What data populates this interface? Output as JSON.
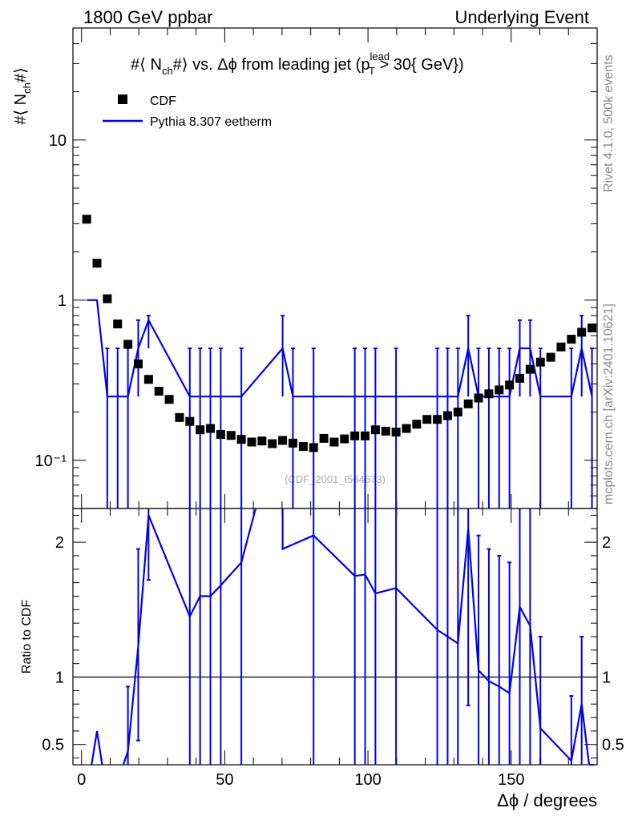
{
  "chart_data": {
    "type": "scatter",
    "header_left": "1800 GeV ppbar",
    "header_right": "Underlying Event",
    "title": "#⟨ N_ch#⟩ vs. Δϕ from leading jet  (p_T^lead > 30{ GeV})",
    "title_parts": {
      "a": "#⟨ N",
      "b": "ch",
      "c": "#⟩ vs. Δϕ from leading jet  (p",
      "d": "lead",
      "e": "T",
      "f": " > 30{ GeV})"
    },
    "ylabel_parts": {
      "a": "#⟨ N",
      "b": "ch",
      "c": "#⟩"
    },
    "xlabel": "Δϕ / degrees",
    "ratio_ylabel": "Ratio to CDF",
    "watermark": "(CDF_2001_I564673)",
    "side_text_top": "Rivet 4.1.0,  500k events",
    "side_text_bottom": "mcplots.cern.ch [arXiv:2401.10621]",
    "legend": [
      {
        "label": "CDF",
        "style": "marker",
        "color": "#000000"
      },
      {
        "label": "Pythia 8.307 eetherm",
        "style": "line",
        "color": "#0000ee"
      }
    ],
    "x_range": [
      -3,
      180
    ],
    "x_ticks": [
      0,
      50,
      100,
      150
    ],
    "x_tick_labels": [
      "0",
      "50",
      "100",
      "150"
    ],
    "main_y_log": true,
    "main_y_range": [
      0.05,
      50
    ],
    "main_y_ticks": [
      0.1,
      1,
      10
    ],
    "main_y_tick_labels": [
      "10⁻¹",
      "1",
      "10"
    ],
    "ratio_y_range": [
      0.35,
      2.25
    ],
    "ratio_y_ticks": [
      0.5,
      1,
      2
    ],
    "ratio_y_tick_labels": [
      "0.5",
      "1",
      "2"
    ],
    "series": [
      {
        "name": "CDF",
        "x": [
          1.8,
          5.4,
          9,
          12.6,
          16.2,
          19.8,
          23.4,
          27,
          30.6,
          34.2,
          37.8,
          41.4,
          45,
          48.6,
          52.2,
          55.8,
          59.4,
          63,
          66.6,
          70.2,
          73.8,
          77.4,
          81,
          84.6,
          88.2,
          91.8,
          95.4,
          99,
          102.6,
          106.2,
          109.8,
          113.4,
          117,
          120.6,
          124.2,
          127.8,
          131.4,
          135,
          138.6,
          142.2,
          145.8,
          149.4,
          153,
          156.6,
          160.2,
          163.8,
          167.4,
          171,
          174.6,
          178.2
        ],
        "values": [
          3.2,
          1.7,
          1.02,
          0.71,
          0.53,
          0.4,
          0.32,
          0.27,
          0.24,
          0.185,
          0.175,
          0.155,
          0.158,
          0.145,
          0.143,
          0.135,
          0.13,
          0.132,
          0.127,
          0.133,
          0.128,
          0.122,
          0.12,
          0.137,
          0.13,
          0.136,
          0.142,
          0.142,
          0.155,
          0.152,
          0.15,
          0.158,
          0.168,
          0.18,
          0.18,
          0.19,
          0.2,
          0.225,
          0.245,
          0.26,
          0.275,
          0.295,
          0.325,
          0.37,
          0.41,
          0.44,
          0.51,
          0.57,
          0.63,
          0.67
        ]
      },
      {
        "name": "Pythia 8.307 eetherm",
        "x": [
          1.8,
          5.4,
          9,
          12.6,
          16.2,
          19.8,
          23.4,
          37.8,
          41.4,
          45,
          48.6,
          55.8,
          70.2,
          73.8,
          81,
          95.4,
          99,
          102.6,
          109.8,
          124.2,
          127.8,
          131.4,
          135,
          138.6,
          142.2,
          145.8,
          149.4,
          153,
          156.6,
          160.2,
          171,
          174.6,
          178.2
        ],
        "values": [
          1.0,
          1.0,
          0.25,
          0.25,
          0.25,
          0.5,
          0.75,
          0.25,
          0.25,
          0.25,
          0.25,
          0.25,
          0.5,
          0.25,
          0.25,
          0.25,
          0.25,
          0.25,
          0.25,
          0.25,
          0.25,
          0.25,
          0.5,
          0.25,
          0.25,
          0.25,
          0.25,
          0.5,
          0.5,
          0.25,
          0.25,
          0.5,
          0.25
        ],
        "err_up": [
          0,
          0,
          0.25,
          0.25,
          0.25,
          0.25,
          0.05,
          0.25,
          0.25,
          0.25,
          0.25,
          0.25,
          0.3,
          0.25,
          0.25,
          0.25,
          0.25,
          0.25,
          0.25,
          0.25,
          0.25,
          0.25,
          0.3,
          0.25,
          0.25,
          0.25,
          0.25,
          0.25,
          0.25,
          0.25,
          0.25,
          0.3,
          0.25
        ],
        "err_down": [
          0,
          0,
          0.25,
          0.25,
          0.25,
          0.25,
          0.25,
          0.25,
          0.25,
          0.25,
          0.25,
          0.25,
          0.25,
          0.25,
          0.25,
          0.25,
          0.25,
          0.25,
          0.25,
          0.25,
          0.25,
          0.25,
          0.25,
          0.25,
          0.25,
          0.25,
          0.25,
          0.25,
          0.25,
          0.25,
          0.25,
          0.25,
          0.25
        ]
      }
    ],
    "ratio_series": [
      {
        "name": "Pythia 8.307 eetherm / CDF",
        "segments": [
          [
            [
              3.5,
              0.3
            ],
            [
              5.4,
              0.6
            ],
            [
              7.2,
              0.3
            ]
          ],
          [
            [
              14.6,
              0.3
            ],
            [
              16.2,
              0.45
            ],
            [
              19.8,
              1.23
            ],
            [
              23.4,
              2.2
            ],
            [
              37.8,
              1.45
            ],
            [
              41.4,
              1.6
            ],
            [
              45,
              1.6
            ],
            [
              48.6,
              1.68
            ],
            [
              55.8,
              1.85
            ],
            [
              60.8,
              2.3
            ]
          ],
          [
            [
              70.2,
              2.3
            ],
            [
              70.2,
              1.95
            ],
            [
              81,
              2.05
            ],
            [
              95.4,
              1.75
            ],
            [
              99,
              1.76
            ],
            [
              102.6,
              1.62
            ],
            [
              109.8,
              1.66
            ],
            [
              124.2,
              1.35
            ],
            [
              127.8,
              1.3
            ],
            [
              131.4,
              1.25
            ],
            [
              135,
              2.1
            ],
            [
              138.6,
              1.05
            ],
            [
              142.2,
              0.97
            ],
            [
              145.8,
              0.93
            ],
            [
              149.4,
              0.88
            ],
            [
              153,
              1.52
            ],
            [
              156.6,
              1.38
            ],
            [
              160.2,
              0.62
            ],
            [
              171,
              0.38
            ],
            [
              174.6,
              0.8
            ],
            [
              177.2,
              0.3
            ]
          ]
        ],
        "err_points": [
          {
            "x": 16.2,
            "lo": 0.3,
            "hi": 0.93
          },
          {
            "x": 19.8,
            "lo": 0.53,
            "hi": 1.95
          },
          {
            "x": 23.4,
            "lo": 1.72,
            "hi": 2.3
          },
          {
            "x": 37.8,
            "lo": 0.3,
            "hi": 2.3
          },
          {
            "x": 41.4,
            "lo": 0.3,
            "hi": 2.3
          },
          {
            "x": 45,
            "lo": 0.3,
            "hi": 2.3
          },
          {
            "x": 48.6,
            "lo": 0.3,
            "hi": 2.3
          },
          {
            "x": 55.8,
            "lo": 0.3,
            "hi": 2.3
          },
          {
            "x": 81,
            "lo": 0.3,
            "hi": 2.3
          },
          {
            "x": 95.4,
            "lo": 0.3,
            "hi": 2.3
          },
          {
            "x": 99,
            "lo": 0.3,
            "hi": 2.3
          },
          {
            "x": 102.6,
            "lo": 0.3,
            "hi": 2.3
          },
          {
            "x": 109.8,
            "lo": 0.3,
            "hi": 2.3
          },
          {
            "x": 124.2,
            "lo": 0.3,
            "hi": 2.3
          },
          {
            "x": 127.8,
            "lo": 0.3,
            "hi": 2.3
          },
          {
            "x": 131.4,
            "lo": 0.3,
            "hi": 2.3
          },
          {
            "x": 135,
            "lo": 0.79,
            "hi": 2.3
          },
          {
            "x": 138.6,
            "lo": 0.3,
            "hi": 2.05
          },
          {
            "x": 142.2,
            "lo": 0.3,
            "hi": 1.95
          },
          {
            "x": 145.8,
            "lo": 0.3,
            "hi": 1.9
          },
          {
            "x": 149.4,
            "lo": 0.3,
            "hi": 1.85
          },
          {
            "x": 153,
            "lo": 0.3,
            "hi": 2.3
          },
          {
            "x": 156.6,
            "lo": 0.3,
            "hi": 2.3
          },
          {
            "x": 160.2,
            "lo": 0.3,
            "hi": 1.3
          },
          {
            "x": 171,
            "lo": 0.3,
            "hi": 0.86
          },
          {
            "x": 174.6,
            "lo": 0.3,
            "hi": 1.3
          },
          {
            "x": 178.2,
            "lo": 0.3,
            "hi": 0.3
          }
        ]
      }
    ]
  }
}
